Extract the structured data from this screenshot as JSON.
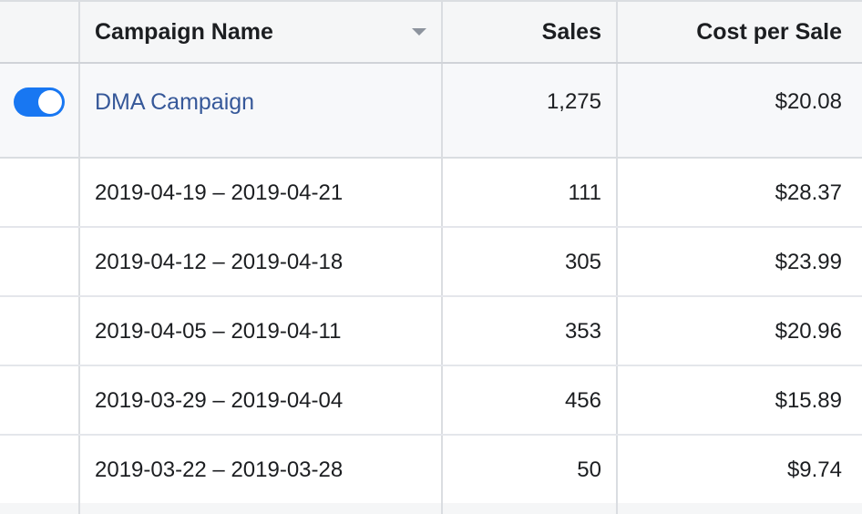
{
  "header": {
    "campaign_name": "Campaign Name",
    "sales": "Sales",
    "cost_per_sale": "Cost per Sale"
  },
  "campaign": {
    "name": "DMA Campaign",
    "sales": "1,275",
    "cost_per_sale": "$20.08",
    "toggle_on": true
  },
  "breakdown_rows": [
    {
      "range": "2019-04-19 – 2019-04-21",
      "sales": "111",
      "cost_per_sale": "$28.37"
    },
    {
      "range": "2019-04-12 – 2019-04-18",
      "sales": "305",
      "cost_per_sale": "$23.99"
    },
    {
      "range": "2019-04-05 – 2019-04-11",
      "sales": "353",
      "cost_per_sale": "$20.96"
    },
    {
      "range": "2019-03-29 – 2019-04-04",
      "sales": "456",
      "cost_per_sale": "$15.89"
    },
    {
      "range": "2019-03-22 – 2019-03-28",
      "sales": "50",
      "cost_per_sale": "$9.74"
    }
  ],
  "colors": {
    "toggle": "#1877f2",
    "link": "#365899",
    "header_bg": "#f5f6f7",
    "border": "#dadde1"
  },
  "icons": {
    "sort": "sort-down-icon"
  }
}
